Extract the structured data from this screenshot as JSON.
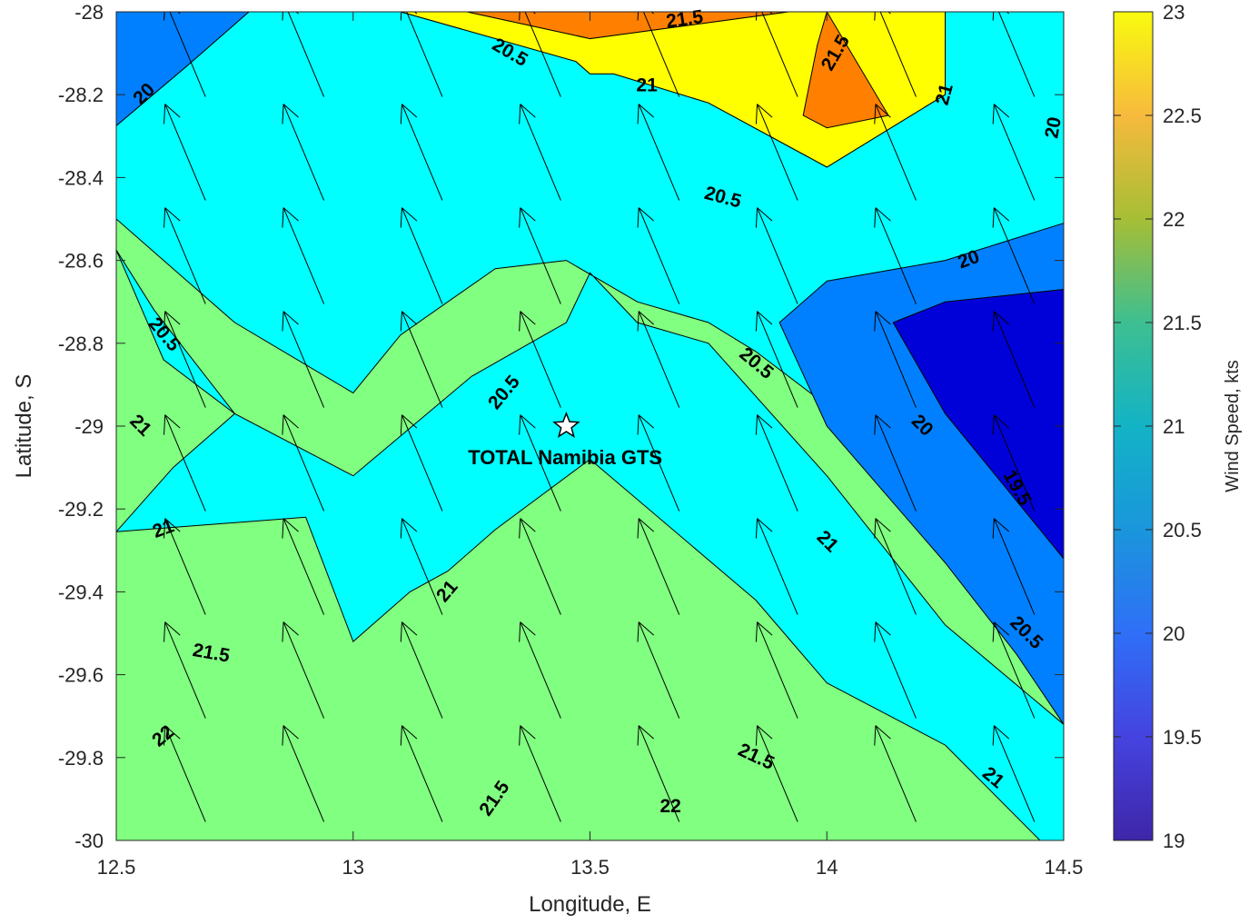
{
  "chart_data": {
    "type": "contourf-quiver",
    "title": "",
    "xlabel": "Longitude, E",
    "ylabel": "Latitude, S",
    "xlim": [
      12.5,
      14.5
    ],
    "ylim": [
      -30,
      -28
    ],
    "x_ticks": [
      12.5,
      13,
      13.5,
      14,
      14.5
    ],
    "x_tick_labels": [
      "12.5",
      "13",
      "13.5",
      "14",
      "14.5"
    ],
    "y_ticks": [
      -28,
      -28.2,
      -28.4,
      -28.6,
      -28.8,
      -29,
      -29.2,
      -29.4,
      -29.6,
      -29.8,
      -30
    ],
    "y_tick_labels": [
      "-28",
      "-28.2",
      "-28.4",
      "-28.6",
      "-28.8",
      "-29",
      "-29.2",
      "-29.4",
      "-29.6",
      "-29.8",
      "-30"
    ],
    "colorbar": {
      "label": "Wind Speed, kts",
      "range": [
        19,
        23
      ],
      "ticks": [
        19,
        19.5,
        20,
        20.5,
        21,
        21.5,
        22,
        22.5,
        23
      ],
      "tick_labels": [
        "19",
        "19.5",
        "20",
        "20.5",
        "21",
        "21.5",
        "22",
        "22.5",
        "23"
      ],
      "colormap": "parula"
    },
    "contour_levels": [
      19.5,
      20,
      20.5,
      21,
      21.5,
      22
    ],
    "level_fill_colors": {
      "below_19.5": "#0000D8",
      "19.5-20": "#0080FF",
      "20-20.5": "#00FFFF",
      "20.5-21": "#80FF80",
      "21-21.5": "#FFFF00",
      "21.5-22": "#FF8000",
      "22-23": "#FF0000",
      "above_23": "#800000"
    },
    "regions": [
      {
        "level": "20.5-21",
        "polygon": [
          [
            12.5,
            -28
          ],
          [
            14.5,
            -28
          ],
          [
            14.5,
            -30
          ],
          [
            12.5,
            -30
          ]
        ]
      },
      {
        "level": "21.5-22",
        "polygon": [
          [
            13.24,
            -28
          ],
          [
            13.92,
            -28
          ],
          [
            13.5,
            -28.065
          ]
        ]
      },
      {
        "level": "21-21.5",
        "polygon": [
          [
            13.0,
            -28
          ],
          [
            13.24,
            -28
          ],
          [
            13.5,
            -28.065
          ],
          [
            13.92,
            -28
          ],
          [
            14.25,
            -28
          ],
          [
            14.25,
            -28.2
          ],
          [
            14.0,
            -28.375
          ],
          [
            13.75,
            -28.22
          ],
          [
            13.55,
            -28.15
          ],
          [
            13.5,
            -28.15
          ],
          [
            13.47,
            -28.12
          ],
          [
            13.1,
            -28
          ]
        ]
      },
      {
        "level": "21.5-22",
        "polygon": [
          [
            13.98,
            -28.08
          ],
          [
            14.0,
            -28.0
          ],
          [
            14.13,
            -28.25
          ],
          [
            14.0,
            -28.28
          ],
          [
            13.95,
            -28.25
          ]
        ]
      },
      {
        "level": "20-20.5",
        "polygon": [
          [
            12.5,
            -28.275
          ],
          [
            12.65,
            -28.13
          ],
          [
            12.78,
            -28
          ],
          [
            13.0,
            -28
          ],
          [
            13.1,
            -28
          ],
          [
            13.47,
            -28.12
          ],
          [
            13.5,
            -28.15
          ],
          [
            13.55,
            -28.15
          ],
          [
            13.75,
            -28.22
          ],
          [
            14.0,
            -28.375
          ],
          [
            14.25,
            -28.2
          ],
          [
            14.25,
            -28
          ],
          [
            14.5,
            -28
          ],
          [
            14.5,
            -30
          ],
          [
            14.45,
            -30
          ],
          [
            14.25,
            -29.77
          ],
          [
            14.0,
            -29.62
          ],
          [
            13.85,
            -29.42
          ],
          [
            13.5,
            -29.08
          ],
          [
            13.3,
            -29.25
          ],
          [
            13.2,
            -29.35
          ],
          [
            13.12,
            -29.4
          ],
          [
            13.0,
            -29.52
          ],
          [
            12.9,
            -29.22
          ],
          [
            12.5,
            -29.255
          ],
          [
            12.5,
            -28.575
          ]
        ]
      },
      {
        "level": "19.5-20",
        "polygon": [
          [
            12.5,
            -28.275
          ],
          [
            12.5,
            -28
          ],
          [
            12.78,
            -28
          ],
          [
            12.65,
            -28.13
          ]
        ]
      },
      {
        "level": "20.5-21",
        "polygon": [
          [
            12.5,
            -28.575
          ],
          [
            12.58,
            -28.72
          ],
          [
            12.75,
            -28.97
          ],
          [
            13.0,
            -29.12
          ],
          [
            13.25,
            -28.88
          ],
          [
            13.45,
            -28.75
          ],
          [
            13.5,
            -28.63
          ],
          [
            13.6,
            -28.75
          ],
          [
            13.75,
            -28.8
          ],
          [
            14.0,
            -29.12
          ],
          [
            14.25,
            -29.48
          ],
          [
            14.5,
            -29.72
          ],
          [
            14.5,
            -29.5
          ],
          [
            14.25,
            -29.12
          ],
          [
            14.0,
            -28.95
          ],
          [
            13.85,
            -28.82
          ],
          [
            13.75,
            -28.75
          ],
          [
            13.6,
            -28.7
          ],
          [
            13.45,
            -28.6
          ],
          [
            13.3,
            -28.62
          ],
          [
            13.1,
            -28.78
          ],
          [
            13.0,
            -28.92
          ],
          [
            12.75,
            -28.75
          ],
          [
            12.6,
            -28.6
          ],
          [
            12.5,
            -28.5
          ]
        ]
      },
      {
        "level": "19.5-20",
        "polygon": [
          [
            13.9,
            -28.75
          ],
          [
            14.0,
            -28.65
          ],
          [
            14.25,
            -28.6
          ],
          [
            14.5,
            -28.51
          ],
          [
            14.5,
            -29.72
          ],
          [
            14.4,
            -29.55
          ],
          [
            14.25,
            -29.33
          ],
          [
            14.0,
            -29.0
          ]
        ]
      },
      {
        "level": "below_19.5",
        "polygon": [
          [
            14.14,
            -28.75
          ],
          [
            14.25,
            -28.7
          ],
          [
            14.5,
            -28.67
          ],
          [
            14.5,
            -29.32
          ],
          [
            14.4,
            -29.18
          ],
          [
            14.25,
            -28.97
          ]
        ]
      },
      {
        "level": "20.5-21",
        "polygon": [
          [
            12.5,
            -28.575
          ],
          [
            12.6,
            -28.84
          ],
          [
            12.75,
            -28.97
          ],
          [
            12.62,
            -29.1
          ],
          [
            12.5,
            -29.255
          ],
          [
            12.5,
            -28.8
          ]
        ]
      }
    ],
    "wind_arrows": {
      "grid_lon": [
        12.65,
        12.9,
        13.15,
        13.4,
        13.65,
        13.9,
        14.15,
        14.4
      ],
      "grid_lat": [
        -28.1,
        -28.35,
        -28.6,
        -28.85,
        -29.1,
        -29.35,
        -29.6,
        -29.85
      ],
      "u": -0.42,
      "v": 1.0
    },
    "contour_labels": [
      {
        "text": "20",
        "lon": 12.56,
        "lat": -28.2,
        "angle": -45
      },
      {
        "text": "20.5",
        "lon": 13.33,
        "lat": -28.1,
        "angle": 30
      },
      {
        "text": "21.5",
        "lon": 13.7,
        "lat": -28.02,
        "angle": -8
      },
      {
        "text": "21.5",
        "lon": 14.02,
        "lat": -28.1,
        "angle": -60
      },
      {
        "text": "21",
        "lon": 13.62,
        "lat": -28.18,
        "angle": 0
      },
      {
        "text": "21",
        "lon": 14.25,
        "lat": -28.2,
        "angle": -75
      },
      {
        "text": "20",
        "lon": 14.48,
        "lat": -28.28,
        "angle": -80
      },
      {
        "text": "20.5",
        "lon": 13.78,
        "lat": -28.45,
        "angle": 15
      },
      {
        "text": "20",
        "lon": 14.3,
        "lat": -28.6,
        "angle": -20
      },
      {
        "text": "20.5",
        "lon": 12.6,
        "lat": -28.78,
        "angle": 50
      },
      {
        "text": "20.5",
        "lon": 13.85,
        "lat": -28.85,
        "angle": 40
      },
      {
        "text": "21",
        "lon": 12.55,
        "lat": -29.0,
        "angle": 45
      },
      {
        "text": "20",
        "lon": 14.2,
        "lat": -29.0,
        "angle": 45
      },
      {
        "text": "20.5",
        "lon": 13.32,
        "lat": -28.92,
        "angle": -50
      },
      {
        "text": "19.5",
        "lon": 14.4,
        "lat": -29.15,
        "angle": 60
      },
      {
        "text": "21",
        "lon": 12.6,
        "lat": -29.25,
        "angle": -20
      },
      {
        "text": "21",
        "lon": 14.0,
        "lat": -29.28,
        "angle": 45
      },
      {
        "text": "21",
        "lon": 13.2,
        "lat": -29.4,
        "angle": -50
      },
      {
        "text": "20.5",
        "lon": 14.42,
        "lat": -29.5,
        "angle": 45
      },
      {
        "text": "21.5",
        "lon": 12.7,
        "lat": -29.55,
        "angle": 10
      },
      {
        "text": "22",
        "lon": 12.6,
        "lat": -29.75,
        "angle": -40
      },
      {
        "text": "21.5",
        "lon": 13.85,
        "lat": -29.8,
        "angle": 25
      },
      {
        "text": "21",
        "lon": 14.35,
        "lat": -29.85,
        "angle": 40
      },
      {
        "text": "21.5",
        "lon": 13.3,
        "lat": -29.9,
        "angle": -55
      },
      {
        "text": "22",
        "lon": 13.67,
        "lat": -29.92,
        "angle": 0
      }
    ],
    "site_marker": {
      "lon": 13.45,
      "lat": -29.0,
      "symbol": "star"
    },
    "annotations": [
      {
        "text": "TOTAL Namibia GTS",
        "lon": 13.3,
        "lat": -29.04
      }
    ]
  }
}
